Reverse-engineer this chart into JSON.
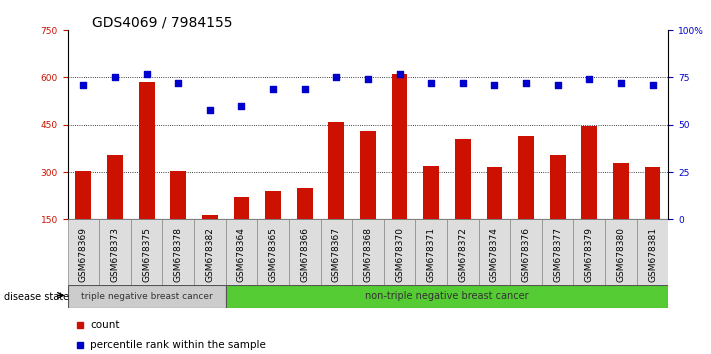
{
  "title": "GDS4069 / 7984155",
  "samples": [
    "GSM678369",
    "GSM678373",
    "GSM678375",
    "GSM678378",
    "GSM678382",
    "GSM678364",
    "GSM678365",
    "GSM678366",
    "GSM678367",
    "GSM678368",
    "GSM678370",
    "GSM678371",
    "GSM678372",
    "GSM678374",
    "GSM678376",
    "GSM678377",
    "GSM678379",
    "GSM678380",
    "GSM678381"
  ],
  "counts": [
    305,
    355,
    585,
    305,
    163,
    220,
    240,
    250,
    460,
    430,
    610,
    320,
    405,
    315,
    415,
    355,
    445,
    330,
    315
  ],
  "percentiles_pct": [
    71,
    75,
    77,
    72,
    58,
    60,
    69,
    69,
    75,
    74,
    77,
    72,
    72,
    71,
    72,
    71,
    74,
    72,
    71
  ],
  "group1_samples": 5,
  "group1_label": "triple negative breast cancer",
  "group2_label": "non-triple negative breast cancer",
  "ylim_left": [
    150,
    750
  ],
  "ylim_right": [
    0,
    100
  ],
  "yticks_left": [
    150,
    300,
    450,
    600,
    750
  ],
  "yticks_right": [
    0,
    25,
    50,
    75,
    100
  ],
  "bar_color": "#cc1100",
  "dot_color": "#0000cc",
  "group1_bg": "#cccccc",
  "group2_bg": "#55cc33",
  "disease_state_label": "disease state",
  "legend_count_label": "count",
  "legend_pct_label": "percentile rank within the sample",
  "title_fontsize": 10,
  "tick_fontsize": 6.5,
  "label_fontsize": 8
}
